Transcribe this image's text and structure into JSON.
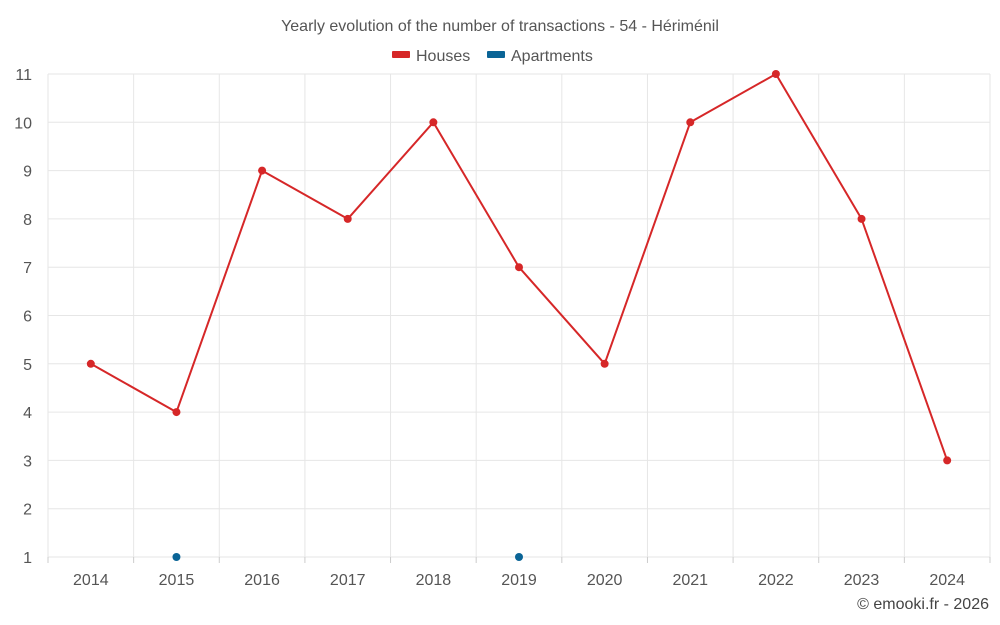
{
  "chart_data": {
    "type": "line",
    "title": "Yearly evolution of the number of transactions - 54 - Hériménil",
    "xlabel": "",
    "ylabel": "",
    "categories": [
      "2014",
      "2015",
      "2016",
      "2017",
      "2018",
      "2019",
      "2020",
      "2021",
      "2022",
      "2023",
      "2024"
    ],
    "ylim": [
      1,
      11
    ],
    "yticks": [
      "1",
      "2",
      "3",
      "4",
      "5",
      "6",
      "7",
      "8",
      "9",
      "10",
      "11"
    ],
    "grid": true,
    "legend_position": "top",
    "series": [
      {
        "name": "Houses",
        "color": "#d62728",
        "values": [
          5,
          4,
          9,
          8,
          10,
          7,
          5,
          10,
          11,
          8,
          3
        ]
      },
      {
        "name": "Apartments",
        "color": "#0a6496",
        "values": [
          null,
          1,
          null,
          null,
          null,
          1,
          null,
          null,
          null,
          null,
          null
        ]
      }
    ]
  },
  "credit": "© emooki.fr - 2026"
}
